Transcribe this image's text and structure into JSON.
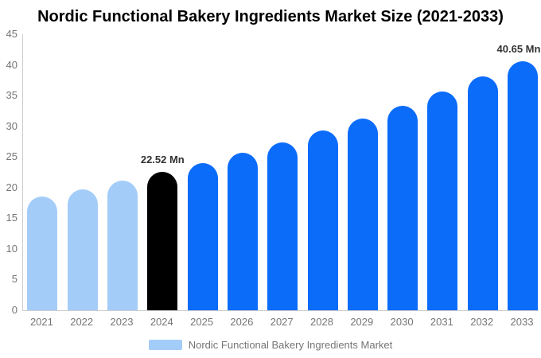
{
  "title": "Nordic Functional Bakery Ingredients Market Size (2021-2033)",
  "colors": {
    "background": "#ffffff",
    "title_text": "#000000",
    "axis_line": "#cccccc",
    "tick_text": "#757575",
    "data_label_text": "#333333",
    "bar_light_blue": "#a4ccf8",
    "bar_blue": "#0b6cfa",
    "bar_black": "#000000"
  },
  "chart_data": {
    "type": "bar",
    "title": "Nordic Functional Bakery Ingredients Market Size (2021-2033)",
    "xlabel": "",
    "ylabel": "",
    "categories": [
      "2021",
      "2022",
      "2023",
      "2024",
      "2025",
      "2026",
      "2027",
      "2028",
      "2029",
      "2030",
      "2031",
      "2032",
      "2033"
    ],
    "values": [
      18.51,
      19.76,
      21.1,
      22.52,
      24.05,
      25.68,
      27.42,
      29.28,
      31.26,
      33.38,
      35.65,
      38.07,
      40.65
    ],
    "unit": "Mn",
    "bar_color_keys": [
      "light",
      "light",
      "light",
      "black",
      "blue",
      "blue",
      "blue",
      "blue",
      "blue",
      "blue",
      "blue",
      "blue",
      "blue"
    ],
    "palette": {
      "light": "#a4ccf8",
      "blue": "#0b6cfa",
      "black": "#000000"
    },
    "data_labels": [
      null,
      null,
      null,
      "22.52 Mn",
      null,
      null,
      null,
      null,
      null,
      null,
      null,
      null,
      "40.65 Mn"
    ],
    "ylim": [
      0,
      45
    ],
    "yticks": [
      0,
      5,
      10,
      15,
      20,
      25,
      30,
      35,
      40,
      45
    ],
    "grid": false,
    "legend": {
      "label": "Nordic Functional Bakery Ingredients Market",
      "swatch_color": "#a4ccf8",
      "position": "bottom-center"
    }
  }
}
